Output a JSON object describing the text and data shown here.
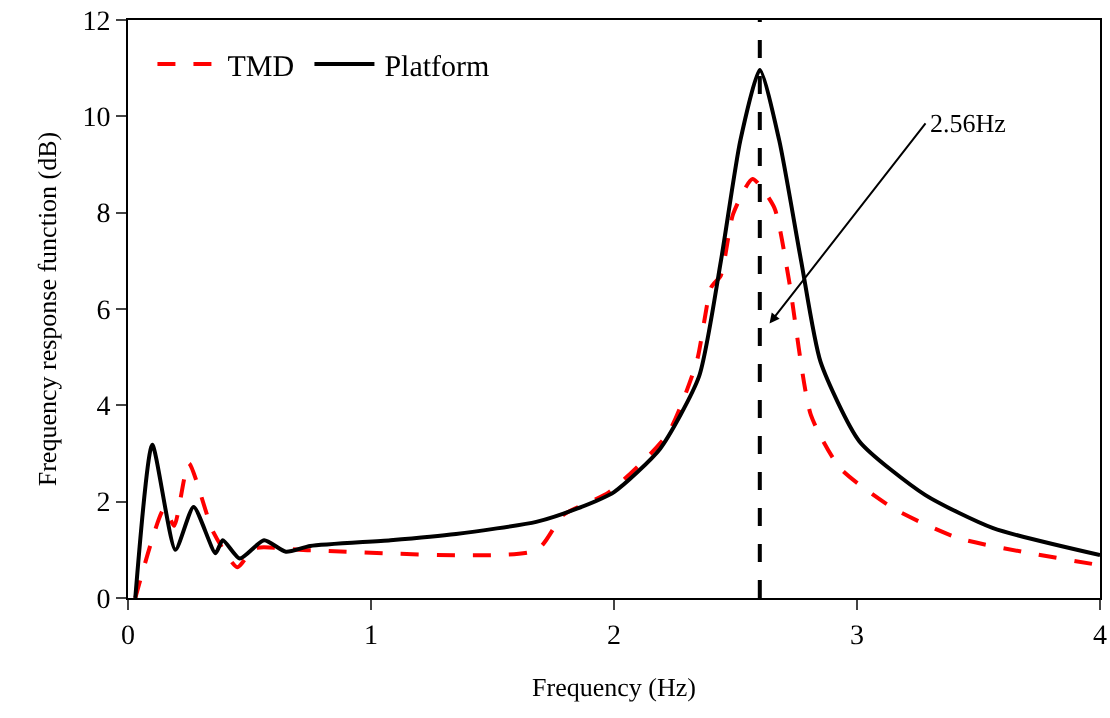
{
  "chart_data": {
    "type": "line",
    "xlabel": "Frequency (Hz)",
    "ylabel": "Frequency response function (dB)",
    "xlim": [
      0,
      4
    ],
    "xticks": [
      0,
      1,
      2,
      3,
      4
    ],
    "ylim": [
      0,
      12
    ],
    "yticks": [
      0,
      2,
      4,
      6,
      8,
      10,
      12
    ],
    "grid": false,
    "legend": "top left",
    "marker": "none",
    "series": [
      {
        "name": "TMD",
        "color": "#ff0000",
        "line_style": "dashed",
        "x": [
          0.03,
          0.15,
          0.19,
          0.25,
          0.35,
          0.45,
          0.52,
          0.75,
          1.68,
          1.79,
          1.98,
          2.22,
          2.34,
          2.4,
          2.44,
          2.49,
          2.57,
          2.66,
          2.72,
          2.81,
          2.93,
          3.15,
          3.42,
          4.0
        ],
        "values": [
          0,
          1.86,
          1.5,
          2.8,
          1.38,
          0.64,
          1.03,
          0.99,
          0.99,
          1.72,
          2.2,
          3.4,
          4.9,
          6.45,
          6.7,
          7.97,
          8.7,
          8.1,
          6.6,
          3.8,
          2.7,
          1.86,
          1.24,
          0.68
        ]
      },
      {
        "name": "Platform",
        "color": "#000000",
        "line_style": "solid",
        "x": [
          0.03,
          0.1,
          0.195,
          0.27,
          0.36,
          0.39,
          0.46,
          0.56,
          0.65,
          0.75,
          1.08,
          1.35,
          1.68,
          1.85,
          2.0,
          2.19,
          2.35,
          2.44,
          2.52,
          2.6,
          2.68,
          2.77,
          2.85,
          3.01,
          3.28,
          3.56,
          4.0
        ],
        "values": [
          0,
          3.18,
          1.0,
          1.89,
          0.93,
          1.2,
          0.82,
          1.2,
          0.96,
          1.08,
          1.2,
          1.33,
          1.58,
          1.86,
          2.2,
          3.1,
          4.6,
          7.0,
          9.5,
          10.96,
          9.5,
          7.0,
          4.9,
          3.25,
          2.14,
          1.45,
          0.89
        ]
      }
    ],
    "ref_lines": [
      {
        "axis": "x",
        "value": 2.6,
        "color": "#000000",
        "line_style": "dashed"
      }
    ],
    "annotations": [
      {
        "text": "2.56Hz",
        "x": 2.64,
        "y": 5.7
      }
    ]
  }
}
